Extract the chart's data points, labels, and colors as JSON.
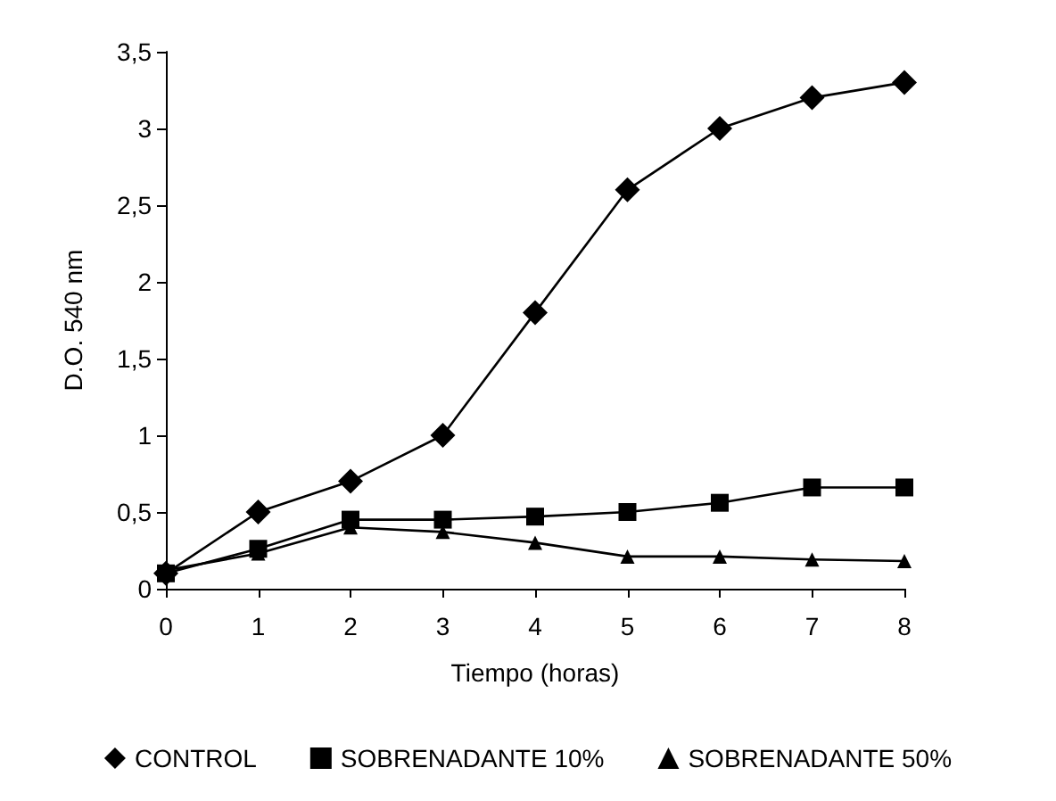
{
  "chart_data": {
    "type": "line",
    "xlabel": "Tiempo (horas)",
    "ylabel": "D.O. 540 nm",
    "x": [
      0,
      1,
      2,
      3,
      4,
      5,
      6,
      7,
      8
    ],
    "series": [
      {
        "name": "CONTROL",
        "color": "#000000",
        "marker": "diamond",
        "values": [
          0.1,
          0.5,
          0.7,
          1.0,
          1.8,
          2.6,
          3.0,
          3.2,
          3.3
        ]
      },
      {
        "name": "SOBRENADANTE 10%",
        "color": "#000000",
        "marker": "square",
        "values": [
          0.1,
          0.26,
          0.45,
          0.45,
          0.47,
          0.5,
          0.56,
          0.66,
          0.66
        ]
      },
      {
        "name": "SOBRENADANTE 50%",
        "color": "#000000",
        "marker": "triangle",
        "values": [
          0.12,
          0.23,
          0.4,
          0.37,
          0.3,
          0.21,
          0.21,
          0.19,
          0.18
        ]
      }
    ],
    "xlim": [
      0,
      8
    ],
    "xticks": [
      0,
      1,
      2,
      3,
      4,
      5,
      6,
      7,
      8
    ],
    "ylim": [
      0,
      3.5
    ],
    "yticks": [
      0,
      {
        "value": 0.5,
        "label": "0,5"
      },
      1,
      {
        "value": 1.5,
        "label": "1,5"
      },
      2,
      {
        "value": 2.5,
        "label": "2,5"
      },
      3,
      {
        "value": 3.5,
        "label": "3,5"
      }
    ],
    "grid": false,
    "legend": "bottom",
    "line_style": "solid"
  }
}
